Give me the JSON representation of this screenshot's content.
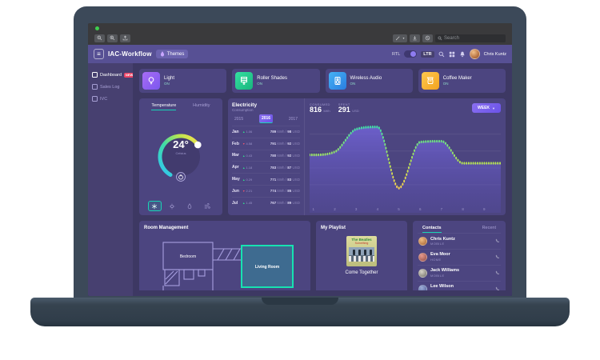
{
  "browser_chrome": {
    "search_placeholder": "Search",
    "icons": [
      "zoom-out",
      "zoom-in",
      "upload",
      "edit",
      "download",
      "help",
      "search"
    ]
  },
  "header": {
    "title": "IAC-Workflow",
    "themes_button": "Themes",
    "rtl_label": "RTL",
    "ltr_label": "LTR",
    "user_name": "Chris Kuntz"
  },
  "sidebar": {
    "items": [
      {
        "label": "Dashboard",
        "badge": "NEW"
      },
      {
        "label": "Sales Log",
        "badge": ""
      },
      {
        "label": "IVC",
        "badge": ""
      }
    ]
  },
  "devices": [
    {
      "name": "Light",
      "status": "ON",
      "color": "#8a63f2"
    },
    {
      "name": "Roller Shades",
      "status": "ON",
      "color": "#22c993"
    },
    {
      "name": "Wireless Audio",
      "status": "ON",
      "color": "#2f9bf0"
    },
    {
      "name": "Coffee Maker",
      "status": "ON",
      "color": "#f7b733"
    }
  ],
  "thermostat": {
    "tab_temperature": "Temperature",
    "tab_humidity": "Humidity",
    "value": "24°",
    "unit": "Celsius"
  },
  "electricity": {
    "title": "Electricity",
    "subtitle": "Consumption",
    "years": [
      "2015",
      "2016",
      "2017"
    ],
    "active_year": "2016",
    "kwh_unit": "kWh",
    "usd_unit": "USD",
    "months": [
      {
        "m": "Jan",
        "dir": "up",
        "pct": "1.06",
        "kwh": "789",
        "usd": "98"
      },
      {
        "m": "Feb",
        "dir": "down",
        "pct": "4.58",
        "kwh": "791",
        "usd": "92"
      },
      {
        "m": "Mar",
        "dir": "up",
        "pct": "0.43",
        "kwh": "780",
        "usd": "92"
      },
      {
        "m": "Apr",
        "dir": "up",
        "pct": "1.18",
        "kwh": "783",
        "usd": "87"
      },
      {
        "m": "May",
        "dir": "up",
        "pct": "0.29",
        "kwh": "771",
        "usd": "83"
      },
      {
        "m": "Jun",
        "dir": "down",
        "pct": "2.21",
        "kwh": "774",
        "usd": "85"
      },
      {
        "m": "Jul",
        "dir": "up",
        "pct": "1.45",
        "kwh": "767",
        "usd": "89"
      }
    ],
    "consumed_label": "Consumed",
    "consumed_value": "816",
    "spent_label": "Spent",
    "spent_value": "291",
    "range_button": "WEEK"
  },
  "chart_data": {
    "type": "area",
    "title": "Electricity Consumption",
    "x": [
      1,
      2,
      3,
      4,
      5,
      6,
      7,
      8,
      9
    ],
    "values": [
      560,
      600,
      900,
      930,
      120,
      730,
      740,
      450,
      450
    ],
    "xlabel": "",
    "ylabel": "kWh",
    "ylim": [
      0,
      1000
    ],
    "grid": true,
    "line_style": "dotted",
    "line_colors": [
      "#3fe3a4",
      "#ffd84d"
    ],
    "fill_color": "#6c5fd0",
    "legend": "none"
  },
  "room_management": {
    "title": "Room Management",
    "bedroom": "Bedroom",
    "living_room": "Living Room"
  },
  "playlist": {
    "title": "My Playlist",
    "album_artist": "The Beatles",
    "album_title": "Something",
    "song": "Come Together"
  },
  "contacts": {
    "tab_contacts": "Contacts",
    "tab_recent": "Recent",
    "people": [
      {
        "name": "Chris Kuntz",
        "type": "MOBILE"
      },
      {
        "name": "Eva Moor",
        "type": "HOME"
      },
      {
        "name": "Jack Williams",
        "type": "MOBILE"
      },
      {
        "name": "Lee Wilson",
        "type": "MOBILE"
      }
    ]
  },
  "colors": {
    "accent_teal": "#19d3b5",
    "badge_red": "#ec4667",
    "header_purple": "#575094",
    "card_bg": "#4c4580",
    "main_bg": "#3d3863"
  }
}
